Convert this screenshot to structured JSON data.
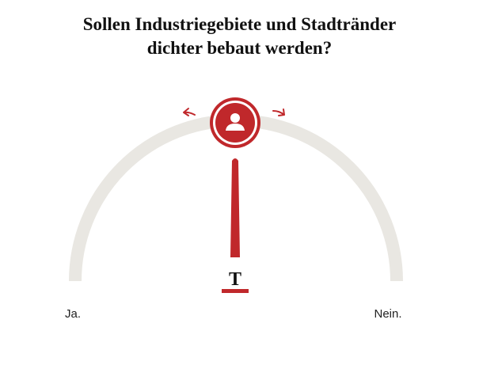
{
  "header": {
    "title": [
      "Sollen Industriegebiete und Stadtränder",
      "dichter bebaut werden?"
    ]
  },
  "poll": {
    "logo": "T",
    "left_label": "Ja.",
    "right_label": "Nein."
  }
}
